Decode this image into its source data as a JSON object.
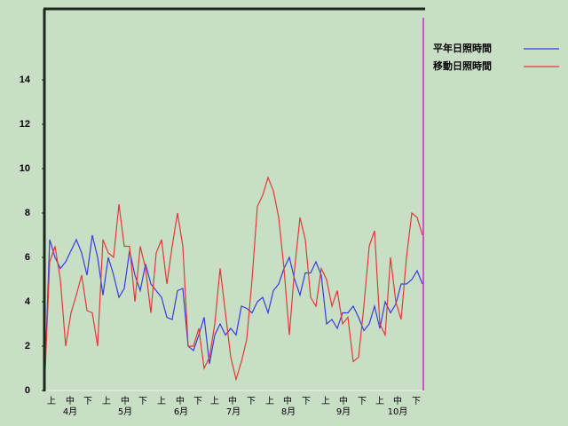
{
  "chart_data": {
    "type": "line",
    "x": [
      0,
      3,
      6,
      9,
      12,
      15,
      18,
      21,
      24,
      27,
      30,
      33,
      36,
      39,
      42,
      45,
      48,
      51,
      54,
      57,
      60,
      63,
      66,
      69,
      72,
      75,
      78,
      81,
      84,
      87,
      90,
      93,
      96,
      99,
      102,
      105,
      108,
      111,
      114,
      117,
      120,
      123,
      126,
      129,
      132,
      135,
      138,
      141,
      144,
      147,
      150,
      153,
      156,
      159,
      162,
      165,
      168,
      171,
      174,
      177,
      180,
      183,
      186,
      189,
      192,
      195,
      198,
      201,
      204,
      207,
      210,
      213
    ],
    "xlim": [
      0,
      214
    ],
    "ylim": [
      0,
      17.2
    ],
    "yticks": [
      0,
      2,
      4,
      6,
      8,
      10,
      12,
      14
    ],
    "xticks": [
      {
        "value": 4,
        "label": "上"
      },
      {
        "value": 14.5,
        "label": "中"
      },
      {
        "value": 24.5,
        "label": "下"
      },
      {
        "value": 35,
        "label": "上"
      },
      {
        "value": 45.5,
        "label": "中"
      },
      {
        "value": 55.5,
        "label": "下"
      },
      {
        "value": 66,
        "label": "上"
      },
      {
        "value": 76.5,
        "label": "中"
      },
      {
        "value": 86.5,
        "label": "下"
      },
      {
        "value": 96,
        "label": "上"
      },
      {
        "value": 106,
        "label": "中"
      },
      {
        "value": 116.5,
        "label": "下"
      },
      {
        "value": 127,
        "label": "上"
      },
      {
        "value": 137,
        "label": "中"
      },
      {
        "value": 147.5,
        "label": "下"
      },
      {
        "value": 158.5,
        "label": "上"
      },
      {
        "value": 168.5,
        "label": "中"
      },
      {
        "value": 179,
        "label": "下"
      },
      {
        "value": 189,
        "label": "上"
      },
      {
        "value": 199,
        "label": "中"
      },
      {
        "value": 209.5,
        "label": "下"
      }
    ],
    "month_ticks": [
      {
        "value": 14.5,
        "label": "4月"
      },
      {
        "value": 45.5,
        "label": "5月"
      },
      {
        "value": 77,
        "label": "6月"
      },
      {
        "value": 106.5,
        "label": "7月"
      },
      {
        "value": 137.5,
        "label": "8月"
      },
      {
        "value": 168.5,
        "label": "9月"
      },
      {
        "value": 199,
        "label": "10月"
      }
    ],
    "legend": "top-right",
    "series": [
      {
        "name": "平年日照時間",
        "color": "#3a3ae0",
        "values": [
          0,
          6.8,
          6.0,
          5.5,
          5.8,
          6.3,
          6.8,
          6.2,
          5.2,
          7.0,
          6.0,
          4.3,
          6.0,
          5.2,
          4.2,
          4.6,
          6.3,
          5.2,
          4.5,
          5.7,
          4.8,
          4.5,
          4.2,
          3.3,
          3.2,
          4.5,
          4.6,
          2.0,
          1.8,
          2.5,
          3.3,
          1.2,
          2.5,
          3.0,
          2.5,
          2.8,
          2.5,
          3.8,
          3.7,
          3.5,
          4.0,
          4.2,
          3.5,
          4.5,
          4.8,
          5.5,
          6.0,
          5.0,
          4.3,
          5.3,
          5.3,
          5.8,
          5.2,
          3.0,
          3.2,
          2.8,
          3.5,
          3.5,
          3.8,
          3.3,
          2.7,
          3.0,
          3.8,
          2.8,
          4.0,
          3.5,
          3.9,
          4.8,
          4.8,
          5.0,
          5.4,
          4.8
        ]
      },
      {
        "name": "移動日照時間",
        "color": "#e03a3a",
        "values": [
          0,
          5.8,
          6.5,
          5.0,
          2.0,
          3.5,
          4.3,
          5.2,
          3.6,
          3.5,
          2.0,
          6.8,
          6.2,
          6.0,
          8.4,
          6.5,
          6.5,
          4.0,
          6.5,
          5.5,
          3.5,
          6.2,
          6.8,
          4.8,
          6.5,
          8.0,
          6.5,
          2.0,
          2.0,
          2.8,
          1.0,
          1.5,
          3.0,
          5.5,
          3.5,
          1.5,
          0.5,
          1.3,
          2.3,
          5.0,
          8.3,
          8.8,
          9.6,
          9.0,
          7.8,
          5.5,
          2.5,
          5.5,
          7.8,
          6.8,
          4.2,
          3.8,
          5.5,
          5.0,
          3.8,
          4.5,
          3.0,
          3.3,
          1.3,
          1.5,
          3.8,
          6.5,
          7.2,
          3.0,
          2.5,
          6.0,
          4.0,
          3.2,
          6.0,
          8.0,
          7.8,
          7.0
        ]
      }
    ]
  }
}
